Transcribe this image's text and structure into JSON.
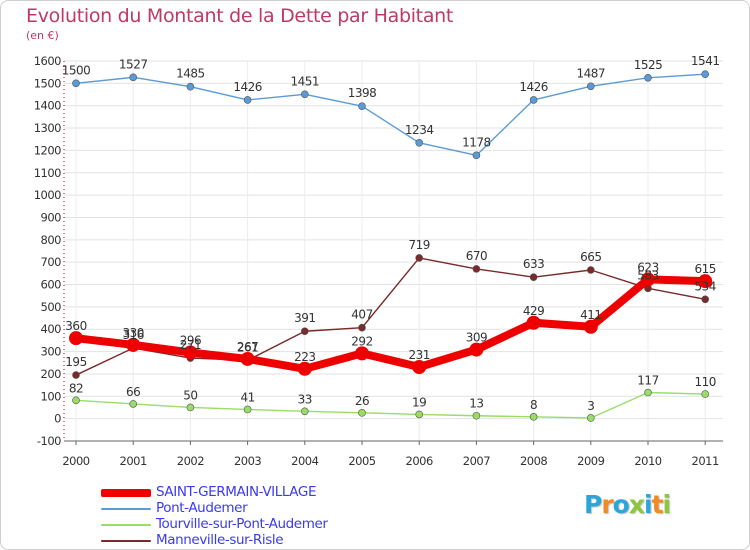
{
  "header": {
    "title": "Evolution du Montant de la Dette par Habitant",
    "subtitle": "(en €)"
  },
  "logo": {
    "text": "Proxiti",
    "letters": [
      "P",
      "r",
      "o",
      "x",
      "i",
      "t",
      "i"
    ],
    "colors": [
      "#2aa6d9",
      "#f08a24",
      "#2aa6d9",
      "#8cc63f",
      "#2aa6d9",
      "#f08a24",
      "#8cc63f"
    ]
  },
  "chart_data": {
    "type": "line",
    "x": [
      "2000",
      "2001",
      "2002",
      "2003",
      "2004",
      "2005",
      "2006",
      "2007",
      "2008",
      "2009",
      "2010",
      "2011"
    ],
    "ylim": [
      -100,
      1600
    ],
    "yticks": [
      -100,
      0,
      100,
      200,
      300,
      400,
      500,
      600,
      700,
      800,
      900,
      1000,
      1100,
      1200,
      1300,
      1400,
      1500,
      1600
    ],
    "grid": true,
    "legend_position": "bottom-left",
    "series": [
      {
        "name": "SAINT-GERMAIN-VILLAGE",
        "color": "#ee0000",
        "values": [
          360,
          330,
          296,
          267,
          223,
          292,
          231,
          309,
          429,
          411,
          623,
          615
        ]
      },
      {
        "name": "Pont-Audemer",
        "color": "#5b9bd5",
        "values": [
          1500,
          1527,
          1485,
          1426,
          1451,
          1398,
          1234,
          1178,
          1426,
          1487,
          1525,
          1541
        ]
      },
      {
        "name": "Tourville-sur-Pont-Audemer",
        "color": "#99dd66",
        "values": [
          82,
          66,
          50,
          41,
          33,
          26,
          19,
          13,
          8,
          3,
          117,
          110
        ]
      },
      {
        "name": "Manneville-sur-Risle",
        "color": "#7a2a2a",
        "values": [
          195,
          316,
          271,
          261,
          391,
          407,
          719,
          670,
          633,
          665,
          583,
          534
        ]
      }
    ]
  }
}
